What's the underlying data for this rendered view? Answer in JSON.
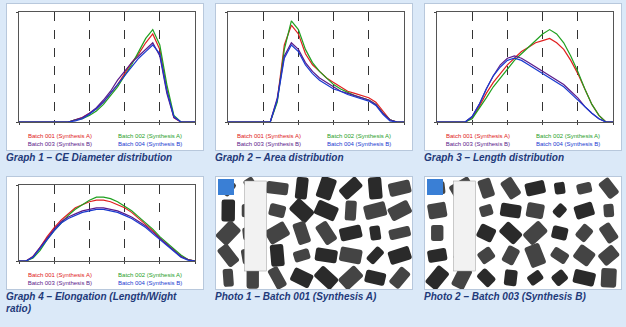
{
  "chart_data": [
    {
      "type": "line",
      "title": "Graph 1 – CE Diameter distribution",
      "x": [
        0,
        4,
        8,
        12,
        16,
        20,
        24,
        28,
        32,
        36,
        40,
        44,
        48,
        52,
        56,
        60,
        64,
        68,
        72,
        76,
        80,
        84,
        88,
        92,
        96,
        100
      ],
      "series": [
        {
          "name": "Batch 001 (Synthesis A)",
          "color": "#e02020",
          "values": [
            0,
            0,
            0,
            0,
            0,
            0,
            0,
            0,
            2,
            4,
            8,
            12,
            18,
            26,
            34,
            44,
            54,
            62,
            72,
            80,
            66,
            30,
            4,
            0,
            0,
            0
          ]
        },
        {
          "name": "Batch 002 (Synthesis A)",
          "color": "#1fa01f",
          "values": [
            0,
            0,
            0,
            0,
            0,
            0,
            0,
            0,
            2,
            3,
            6,
            10,
            16,
            24,
            32,
            42,
            52,
            64,
            76,
            84,
            70,
            34,
            6,
            0,
            0,
            0
          ]
        },
        {
          "name": "Batch 003 (Synthesis B)",
          "color": "#5a1a8a",
          "values": [
            0,
            0,
            0,
            0,
            0,
            0,
            0,
            0,
            2,
            4,
            8,
            13,
            20,
            28,
            38,
            46,
            54,
            60,
            66,
            72,
            60,
            26,
            4,
            0,
            0,
            0
          ]
        },
        {
          "name": "Batch 004 (Synthesis B)",
          "color": "#1a3ad0",
          "values": [
            0,
            0,
            0,
            0,
            0,
            0,
            0,
            0,
            1,
            3,
            7,
            12,
            18,
            26,
            34,
            42,
            50,
            58,
            64,
            70,
            62,
            28,
            5,
            0,
            0,
            0
          ]
        }
      ],
      "xlim": [
        0,
        100
      ],
      "ylim": [
        0,
        100
      ],
      "xticks": [
        0,
        20,
        40,
        60,
        80,
        100
      ],
      "yticks": [
        0,
        100
      ],
      "grid": true,
      "tick_labels": false,
      "legend": "bottom"
    },
    {
      "type": "line",
      "title": "Graph 2 – Area distribution",
      "x": [
        0,
        4,
        8,
        12,
        16,
        20,
        24,
        28,
        32,
        36,
        40,
        44,
        48,
        52,
        56,
        60,
        64,
        68,
        72,
        76,
        80,
        84,
        88,
        92,
        96,
        100
      ],
      "series": [
        {
          "name": "Batch 001 (Synthesis A)",
          "color": "#e02020",
          "values": [
            0,
            0,
            0,
            0,
            0,
            0,
            0,
            20,
            70,
            88,
            80,
            62,
            52,
            46,
            40,
            36,
            32,
            28,
            26,
            24,
            22,
            18,
            10,
            2,
            0,
            0
          ]
        },
        {
          "name": "Batch 002 (Synthesis A)",
          "color": "#1fa01f",
          "values": [
            0,
            0,
            0,
            0,
            0,
            0,
            0,
            18,
            66,
            92,
            84,
            66,
            54,
            46,
            40,
            34,
            30,
            27,
            24,
            22,
            20,
            16,
            8,
            2,
            0,
            0
          ]
        },
        {
          "name": "Batch 003 (Synthesis B)",
          "color": "#5a1a8a",
          "values": [
            0,
            0,
            0,
            0,
            0,
            0,
            0,
            22,
            60,
            72,
            66,
            54,
            46,
            40,
            36,
            32,
            28,
            26,
            24,
            22,
            20,
            16,
            8,
            2,
            0,
            0
          ]
        },
        {
          "name": "Batch 004 (Synthesis B)",
          "color": "#1a3ad0",
          "values": [
            0,
            0,
            0,
            0,
            0,
            0,
            0,
            20,
            58,
            70,
            64,
            52,
            44,
            38,
            34,
            30,
            28,
            25,
            23,
            21,
            19,
            15,
            7,
            1,
            0,
            0
          ]
        }
      ],
      "xlim": [
        0,
        100
      ],
      "ylim": [
        0,
        100
      ],
      "xticks": [
        0,
        20,
        40,
        60,
        80,
        100
      ],
      "yticks": [
        0,
        100
      ],
      "grid": true,
      "tick_labels": false,
      "legend": "bottom"
    },
    {
      "type": "line",
      "title": "Graph 3 – Length distribution",
      "x": [
        0,
        4,
        8,
        12,
        16,
        20,
        24,
        28,
        32,
        36,
        40,
        44,
        48,
        52,
        56,
        60,
        64,
        68,
        72,
        76,
        80,
        84,
        88,
        92,
        96,
        100
      ],
      "series": [
        {
          "name": "Batch 001 (Synthesis A)",
          "color": "#e02020",
          "values": [
            0,
            0,
            0,
            0,
            0,
            4,
            14,
            26,
            36,
            44,
            52,
            58,
            64,
            68,
            72,
            74,
            76,
            72,
            66,
            56,
            44,
            30,
            16,
            6,
            0,
            0
          ]
        },
        {
          "name": "Batch 002 (Synthesis A)",
          "color": "#1fa01f",
          "values": [
            0,
            0,
            0,
            0,
            0,
            3,
            12,
            22,
            32,
            40,
            48,
            56,
            62,
            68,
            74,
            80,
            84,
            80,
            72,
            60,
            46,
            30,
            16,
            6,
            0,
            0
          ]
        },
        {
          "name": "Batch 003 (Synthesis B)",
          "color": "#5a1a8a",
          "values": [
            0,
            0,
            0,
            0,
            0,
            5,
            16,
            30,
            42,
            52,
            58,
            60,
            58,
            54,
            50,
            46,
            42,
            38,
            34,
            28,
            22,
            14,
            8,
            3,
            0,
            0
          ]
        },
        {
          "name": "Batch 004 (Synthesis B)",
          "color": "#1a3ad0",
          "values": [
            0,
            0,
            0,
            0,
            0,
            5,
            16,
            30,
            42,
            50,
            56,
            58,
            56,
            52,
            48,
            44,
            40,
            36,
            32,
            26,
            20,
            14,
            8,
            3,
            0,
            0
          ]
        }
      ],
      "xlim": [
        0,
        100
      ],
      "ylim": [
        0,
        100
      ],
      "xticks": [
        0,
        20,
        40,
        60,
        80,
        100
      ],
      "yticks": [
        0,
        100
      ],
      "grid": true,
      "tick_labels": false,
      "legend": "bottom"
    },
    {
      "type": "line",
      "title": "Graph 4 – Elongation (Length/Wight ratio)",
      "x": [
        0,
        4,
        8,
        12,
        16,
        20,
        24,
        28,
        32,
        36,
        40,
        44,
        48,
        52,
        56,
        60,
        64,
        68,
        72,
        76,
        80,
        84,
        88,
        92,
        96,
        100
      ],
      "series": [
        {
          "name": "Batch 001 (Synthesis A)",
          "color": "#e02020",
          "values": [
            0,
            0,
            6,
            18,
            32,
            44,
            54,
            62,
            70,
            74,
            78,
            80,
            80,
            78,
            74,
            70,
            64,
            56,
            48,
            40,
            30,
            22,
            14,
            6,
            2,
            0
          ]
        },
        {
          "name": "Batch 002 (Synthesis A)",
          "color": "#1fa01f",
          "values": [
            0,
            0,
            4,
            14,
            28,
            40,
            50,
            60,
            68,
            74,
            80,
            84,
            84,
            82,
            78,
            72,
            66,
            58,
            50,
            42,
            32,
            24,
            16,
            8,
            2,
            0
          ]
        },
        {
          "name": "Batch 003 (Synthesis B)",
          "color": "#5a1a8a",
          "values": [
            0,
            0,
            6,
            18,
            30,
            42,
            52,
            58,
            62,
            66,
            68,
            70,
            70,
            68,
            66,
            62,
            58,
            52,
            46,
            38,
            30,
            22,
            14,
            6,
            2,
            0
          ]
        },
        {
          "name": "Batch 004 (Synthesis B)",
          "color": "#1a3ad0",
          "values": [
            0,
            0,
            5,
            16,
            28,
            40,
            50,
            56,
            60,
            64,
            66,
            68,
            68,
            66,
            64,
            60,
            56,
            50,
            44,
            36,
            28,
            20,
            12,
            5,
            1,
            0
          ]
        }
      ],
      "xlim": [
        0,
        100
      ],
      "ylim": [
        0,
        100
      ],
      "xticks": [
        0,
        20,
        40,
        60,
        80,
        100
      ],
      "yticks": [
        0,
        100
      ],
      "grid": true,
      "tick_labels": false,
      "legend": "bottom"
    }
  ],
  "photos": [
    {
      "caption": "Photo 1 – Batch 001 (Synthesis A)"
    },
    {
      "caption": "Photo 2 – Batch 003 (Synthesis B)"
    }
  ]
}
